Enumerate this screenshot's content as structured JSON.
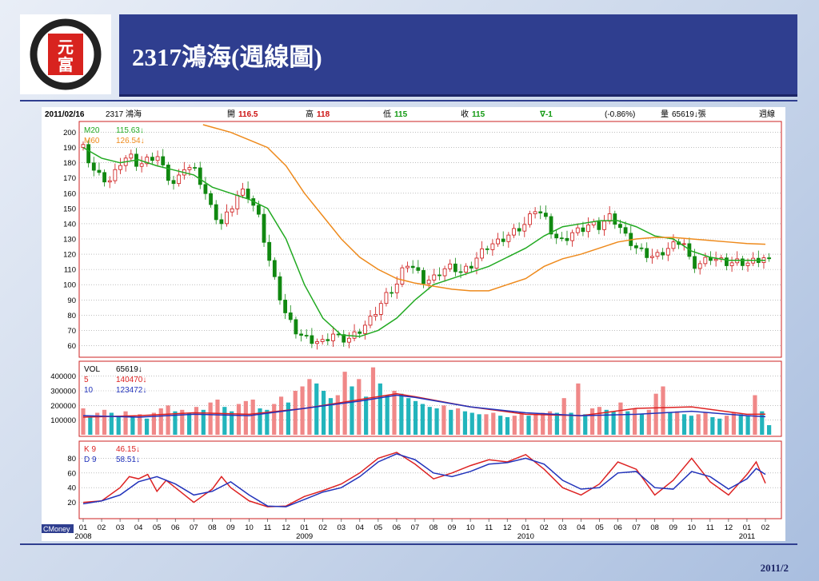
{
  "slide": {
    "title": "2317鴻海(週線圖)",
    "logo_text": "元富",
    "footer_date": "2011/2"
  },
  "info_bar": {
    "date": "2011/02/16",
    "stock": "2317 鴻海",
    "open_label": "開",
    "open": "116.5",
    "high_label": "高",
    "high": "118",
    "low_label": "低",
    "low": "115",
    "close_label": "收",
    "close": "115",
    "change": "∇-1",
    "change_pct": "(-0.86%)",
    "volume_label": "量",
    "volume": "65619↓張",
    "period": "週線"
  },
  "price_panel": {
    "legend": [
      {
        "name": "M20",
        "value": "115.63↓",
        "color": "#22aa22"
      },
      {
        "name": "M60",
        "value": "126.54↓",
        "color": "#ee8a1c"
      }
    ]
  },
  "volume_panel": {
    "legend": [
      {
        "name": "VOL",
        "value": "65619↓",
        "color": "#000000"
      },
      {
        "name": "5",
        "value": "140470↓",
        "color": "#dd2222"
      },
      {
        "name": "10",
        "value": "123472↓",
        "color": "#2233bb"
      }
    ]
  },
  "kd_panel": {
    "legend": [
      {
        "name": "K 9",
        "value": "46.15↓",
        "color": "#dd2222"
      },
      {
        "name": "D 9",
        "value": "58.51↓",
        "color": "#2233bb"
      }
    ]
  },
  "source_label": "CMoney",
  "colors": {
    "up": "#f08888",
    "down": "#22b4bc",
    "ma20": "#22aa22",
    "ma60": "#ee8a1c",
    "frame": "#cc2222"
  },
  "chart_data": [
    {
      "type": "candlestick",
      "title": "",
      "ylim": [
        55,
        205
      ],
      "yticks": [
        60,
        70,
        80,
        90,
        100,
        110,
        120,
        130,
        140,
        150,
        160,
        170,
        180,
        190,
        200
      ],
      "x": [
        "01",
        "02",
        "03",
        "04",
        "05",
        "06",
        "07",
        "08",
        "09",
        "10",
        "11",
        "12",
        "01",
        "02",
        "03",
        "04",
        "05",
        "06",
        "07",
        "08",
        "09",
        "10",
        "11",
        "12",
        "01",
        "02",
        "03",
        "04",
        "05",
        "06",
        "07",
        "08",
        "09",
        "10",
        "11",
        "12",
        "01",
        "02"
      ],
      "year_labels": [
        {
          "at": 0,
          "label": "2008"
        },
        {
          "at": 12,
          "label": "2009"
        },
        {
          "at": 24,
          "label": "2010"
        },
        {
          "at": 36,
          "label": "2011"
        }
      ],
      "close_path": [
        [
          0,
          190
        ],
        [
          0.5,
          176
        ],
        [
          1,
          170
        ],
        [
          1.5,
          168
        ],
        [
          2,
          180
        ],
        [
          2.5,
          185
        ],
        [
          3,
          178
        ],
        [
          3.5,
          182
        ],
        [
          4,
          185
        ],
        [
          4.5,
          172
        ],
        [
          5,
          165
        ],
        [
          5.5,
          178
        ],
        [
          6,
          176
        ],
        [
          6.5,
          164
        ],
        [
          7,
          148
        ],
        [
          7.5,
          140
        ],
        [
          8,
          150
        ],
        [
          8.5,
          162
        ],
        [
          9,
          158
        ],
        [
          9.5,
          145
        ],
        [
          10,
          120
        ],
        [
          10.5,
          98
        ],
        [
          11,
          80
        ],
        [
          11.5,
          70
        ],
        [
          12,
          65
        ],
        [
          12.5,
          63
        ],
        [
          13,
          62
        ],
        [
          13.5,
          68
        ],
        [
          14,
          64
        ],
        [
          14.5,
          65
        ],
        [
          15,
          70
        ],
        [
          15.5,
          76
        ],
        [
          16,
          85
        ],
        [
          16.5,
          94
        ],
        [
          17,
          100
        ],
        [
          17.5,
          115
        ],
        [
          18,
          110
        ],
        [
          18.5,
          102
        ],
        [
          19,
          104
        ],
        [
          19.5,
          110
        ],
        [
          20,
          112
        ],
        [
          20.5,
          108
        ],
        [
          21,
          112
        ],
        [
          21.5,
          120
        ],
        [
          22,
          126
        ],
        [
          22.5,
          128
        ],
        [
          23,
          132
        ],
        [
          23.5,
          136
        ],
        [
          24,
          140
        ],
        [
          24.5,
          150
        ],
        [
          25,
          145
        ],
        [
          25.5,
          132
        ],
        [
          26,
          128
        ],
        [
          26.5,
          134
        ],
        [
          27,
          136
        ],
        [
          27.5,
          140
        ],
        [
          28,
          138
        ],
        [
          28.5,
          145
        ],
        [
          29,
          140
        ],
        [
          29.5,
          130
        ],
        [
          30,
          124
        ],
        [
          30.5,
          120
        ],
        [
          31,
          118
        ],
        [
          31.5,
          122
        ],
        [
          32,
          126
        ],
        [
          32.5,
          130
        ],
        [
          33,
          112
        ],
        [
          33.5,
          114
        ],
        [
          34,
          118
        ],
        [
          34.5,
          116
        ],
        [
          35,
          114
        ],
        [
          35.5,
          115
        ],
        [
          36,
          114
        ],
        [
          36.5,
          116
        ],
        [
          37,
          118
        ],
        [
          37.2,
          115
        ]
      ],
      "ma20_path": [
        [
          0,
          190
        ],
        [
          1,
          183
        ],
        [
          2,
          180
        ],
        [
          3,
          182
        ],
        [
          4,
          178
        ],
        [
          5,
          175
        ],
        [
          6,
          172
        ],
        [
          7,
          164
        ],
        [
          8,
          160
        ],
        [
          9,
          156
        ],
        [
          10,
          150
        ],
        [
          11,
          130
        ],
        [
          12,
          100
        ],
        [
          13,
          78
        ],
        [
          14,
          67
        ],
        [
          15,
          66
        ],
        [
          16,
          70
        ],
        [
          17,
          78
        ],
        [
          18,
          90
        ],
        [
          19,
          100
        ],
        [
          20,
          104
        ],
        [
          21,
          108
        ],
        [
          22,
          112
        ],
        [
          23,
          118
        ],
        [
          24,
          124
        ],
        [
          25,
          132
        ],
        [
          26,
          138
        ],
        [
          27,
          140
        ],
        [
          28,
          142
        ],
        [
          29,
          142
        ],
        [
          30,
          138
        ],
        [
          31,
          132
        ],
        [
          32,
          130
        ],
        [
          33,
          122
        ],
        [
          34,
          118
        ],
        [
          35,
          116
        ],
        [
          36,
          116
        ],
        [
          37,
          116
        ]
      ],
      "ma60_path": [
        [
          6.5,
          205
        ],
        [
          8,
          200
        ],
        [
          9,
          195
        ],
        [
          10,
          190
        ],
        [
          11,
          178
        ],
        [
          12,
          160
        ],
        [
          13,
          145
        ],
        [
          14,
          130
        ],
        [
          15,
          118
        ],
        [
          16,
          110
        ],
        [
          17,
          104
        ],
        [
          18,
          101
        ],
        [
          19,
          99
        ],
        [
          20,
          97
        ],
        [
          21,
          96
        ],
        [
          22,
          96
        ],
        [
          23,
          100
        ],
        [
          24,
          104
        ],
        [
          25,
          112
        ],
        [
          26,
          117
        ],
        [
          27,
          120
        ],
        [
          28,
          124
        ],
        [
          29,
          128
        ],
        [
          30,
          130
        ],
        [
          31,
          131
        ],
        [
          32,
          131
        ],
        [
          33,
          130
        ],
        [
          34,
          129
        ],
        [
          35,
          128
        ],
        [
          36,
          127
        ],
        [
          37,
          126.5
        ]
      ]
    },
    {
      "type": "bar",
      "title": "VOL",
      "ylim": [
        0,
        480000
      ],
      "yticks": [
        100000,
        200000,
        300000,
        400000
      ],
      "weekly_volume": [
        180000,
        120000,
        150000,
        170000,
        150000,
        130000,
        160000,
        120000,
        140000,
        110000,
        150000,
        180000,
        200000,
        160000,
        170000,
        150000,
        190000,
        170000,
        220000,
        240000,
        190000,
        160000,
        210000,
        230000,
        240000,
        180000,
        170000,
        210000,
        260000,
        220000,
        300000,
        330000,
        380000,
        350000,
        300000,
        250000,
        270000,
        430000,
        330000,
        380000,
        260000,
        460000,
        350000,
        270000,
        300000,
        280000,
        250000,
        230000,
        210000,
        190000,
        180000,
        200000,
        170000,
        180000,
        160000,
        150000,
        140000,
        140000,
        150000,
        130000,
        120000,
        130000,
        150000,
        130000,
        140000,
        150000,
        160000,
        150000,
        250000,
        150000,
        350000,
        140000,
        180000,
        190000,
        170000,
        160000,
        220000,
        160000,
        180000,
        140000,
        170000,
        280000,
        330000,
        150000,
        160000,
        140000,
        130000,
        140000,
        150000,
        120000,
        110000,
        130000,
        150000,
        140000,
        130000,
        270000,
        160000,
        65619
      ],
      "ma5_path": [
        [
          0,
          120000
        ],
        [
          3,
          130000
        ],
        [
          6,
          150000
        ],
        [
          9,
          140000
        ],
        [
          12,
          180000
        ],
        [
          15,
          240000
        ],
        [
          17,
          280000
        ],
        [
          18,
          260000
        ],
        [
          21,
          190000
        ],
        [
          24,
          140000
        ],
        [
          27,
          130000
        ],
        [
          30,
          180000
        ],
        [
          33,
          190000
        ],
        [
          36,
          140000
        ],
        [
          37,
          140470
        ]
      ],
      "ma10_path": [
        [
          0,
          130000
        ],
        [
          3,
          120000
        ],
        [
          6,
          140000
        ],
        [
          9,
          130000
        ],
        [
          12,
          180000
        ],
        [
          15,
          230000
        ],
        [
          17,
          270000
        ],
        [
          18,
          255000
        ],
        [
          21,
          190000
        ],
        [
          24,
          150000
        ],
        [
          27,
          130000
        ],
        [
          30,
          140000
        ],
        [
          33,
          160000
        ],
        [
          36,
          130000
        ],
        [
          37,
          123472
        ]
      ]
    },
    {
      "type": "line",
      "title": "KD",
      "ylim": [
        0,
        100
      ],
      "yticks": [
        20,
        40,
        60,
        80
      ],
      "series": [
        {
          "name": "K 9",
          "path": [
            [
              0,
              20
            ],
            [
              1,
              22
            ],
            [
              2,
              40
            ],
            [
              2.5,
              55
            ],
            [
              3,
              52
            ],
            [
              3.5,
              58
            ],
            [
              4,
              35
            ],
            [
              4.5,
              50
            ],
            [
              5,
              40
            ],
            [
              6,
              20
            ],
            [
              7,
              38
            ],
            [
              7.5,
              55
            ],
            [
              8,
              40
            ],
            [
              9,
              22
            ],
            [
              10,
              14
            ],
            [
              11,
              15
            ],
            [
              12,
              28
            ],
            [
              13,
              36
            ],
            [
              14,
              45
            ],
            [
              15,
              60
            ],
            [
              16,
              80
            ],
            [
              17,
              88
            ],
            [
              18,
              72
            ],
            [
              19,
              52
            ],
            [
              20,
              60
            ],
            [
              21,
              70
            ],
            [
              22,
              78
            ],
            [
              23,
              75
            ],
            [
              24,
              85
            ],
            [
              25,
              65
            ],
            [
              26,
              40
            ],
            [
              27,
              30
            ],
            [
              28,
              45
            ],
            [
              29,
              75
            ],
            [
              30,
              65
            ],
            [
              31,
              30
            ],
            [
              32,
              50
            ],
            [
              33,
              80
            ],
            [
              34,
              48
            ],
            [
              35,
              30
            ],
            [
              36,
              58
            ],
            [
              36.5,
              75
            ],
            [
              37,
              46
            ]
          ]
        },
        {
          "name": "D 9",
          "path": [
            [
              0,
              18
            ],
            [
              1,
              22
            ],
            [
              2,
              30
            ],
            [
              3,
              48
            ],
            [
              4,
              55
            ],
            [
              5,
              45
            ],
            [
              6,
              30
            ],
            [
              7,
              35
            ],
            [
              8,
              48
            ],
            [
              9,
              30
            ],
            [
              10,
              15
            ],
            [
              11,
              14
            ],
            [
              12,
              24
            ],
            [
              13,
              34
            ],
            [
              14,
              40
            ],
            [
              15,
              55
            ],
            [
              16,
              75
            ],
            [
              17,
              86
            ],
            [
              18,
              78
            ],
            [
              19,
              60
            ],
            [
              20,
              55
            ],
            [
              21,
              62
            ],
            [
              22,
              72
            ],
            [
              23,
              74
            ],
            [
              24,
              80
            ],
            [
              25,
              72
            ],
            [
              26,
              50
            ],
            [
              27,
              38
            ],
            [
              28,
              40
            ],
            [
              29,
              60
            ],
            [
              30,
              62
            ],
            [
              31,
              40
            ],
            [
              32,
              38
            ],
            [
              33,
              62
            ],
            [
              34,
              55
            ],
            [
              35,
              38
            ],
            [
              36,
              52
            ],
            [
              36.5,
              66
            ],
            [
              37,
              58
            ]
          ]
        }
      ]
    }
  ]
}
